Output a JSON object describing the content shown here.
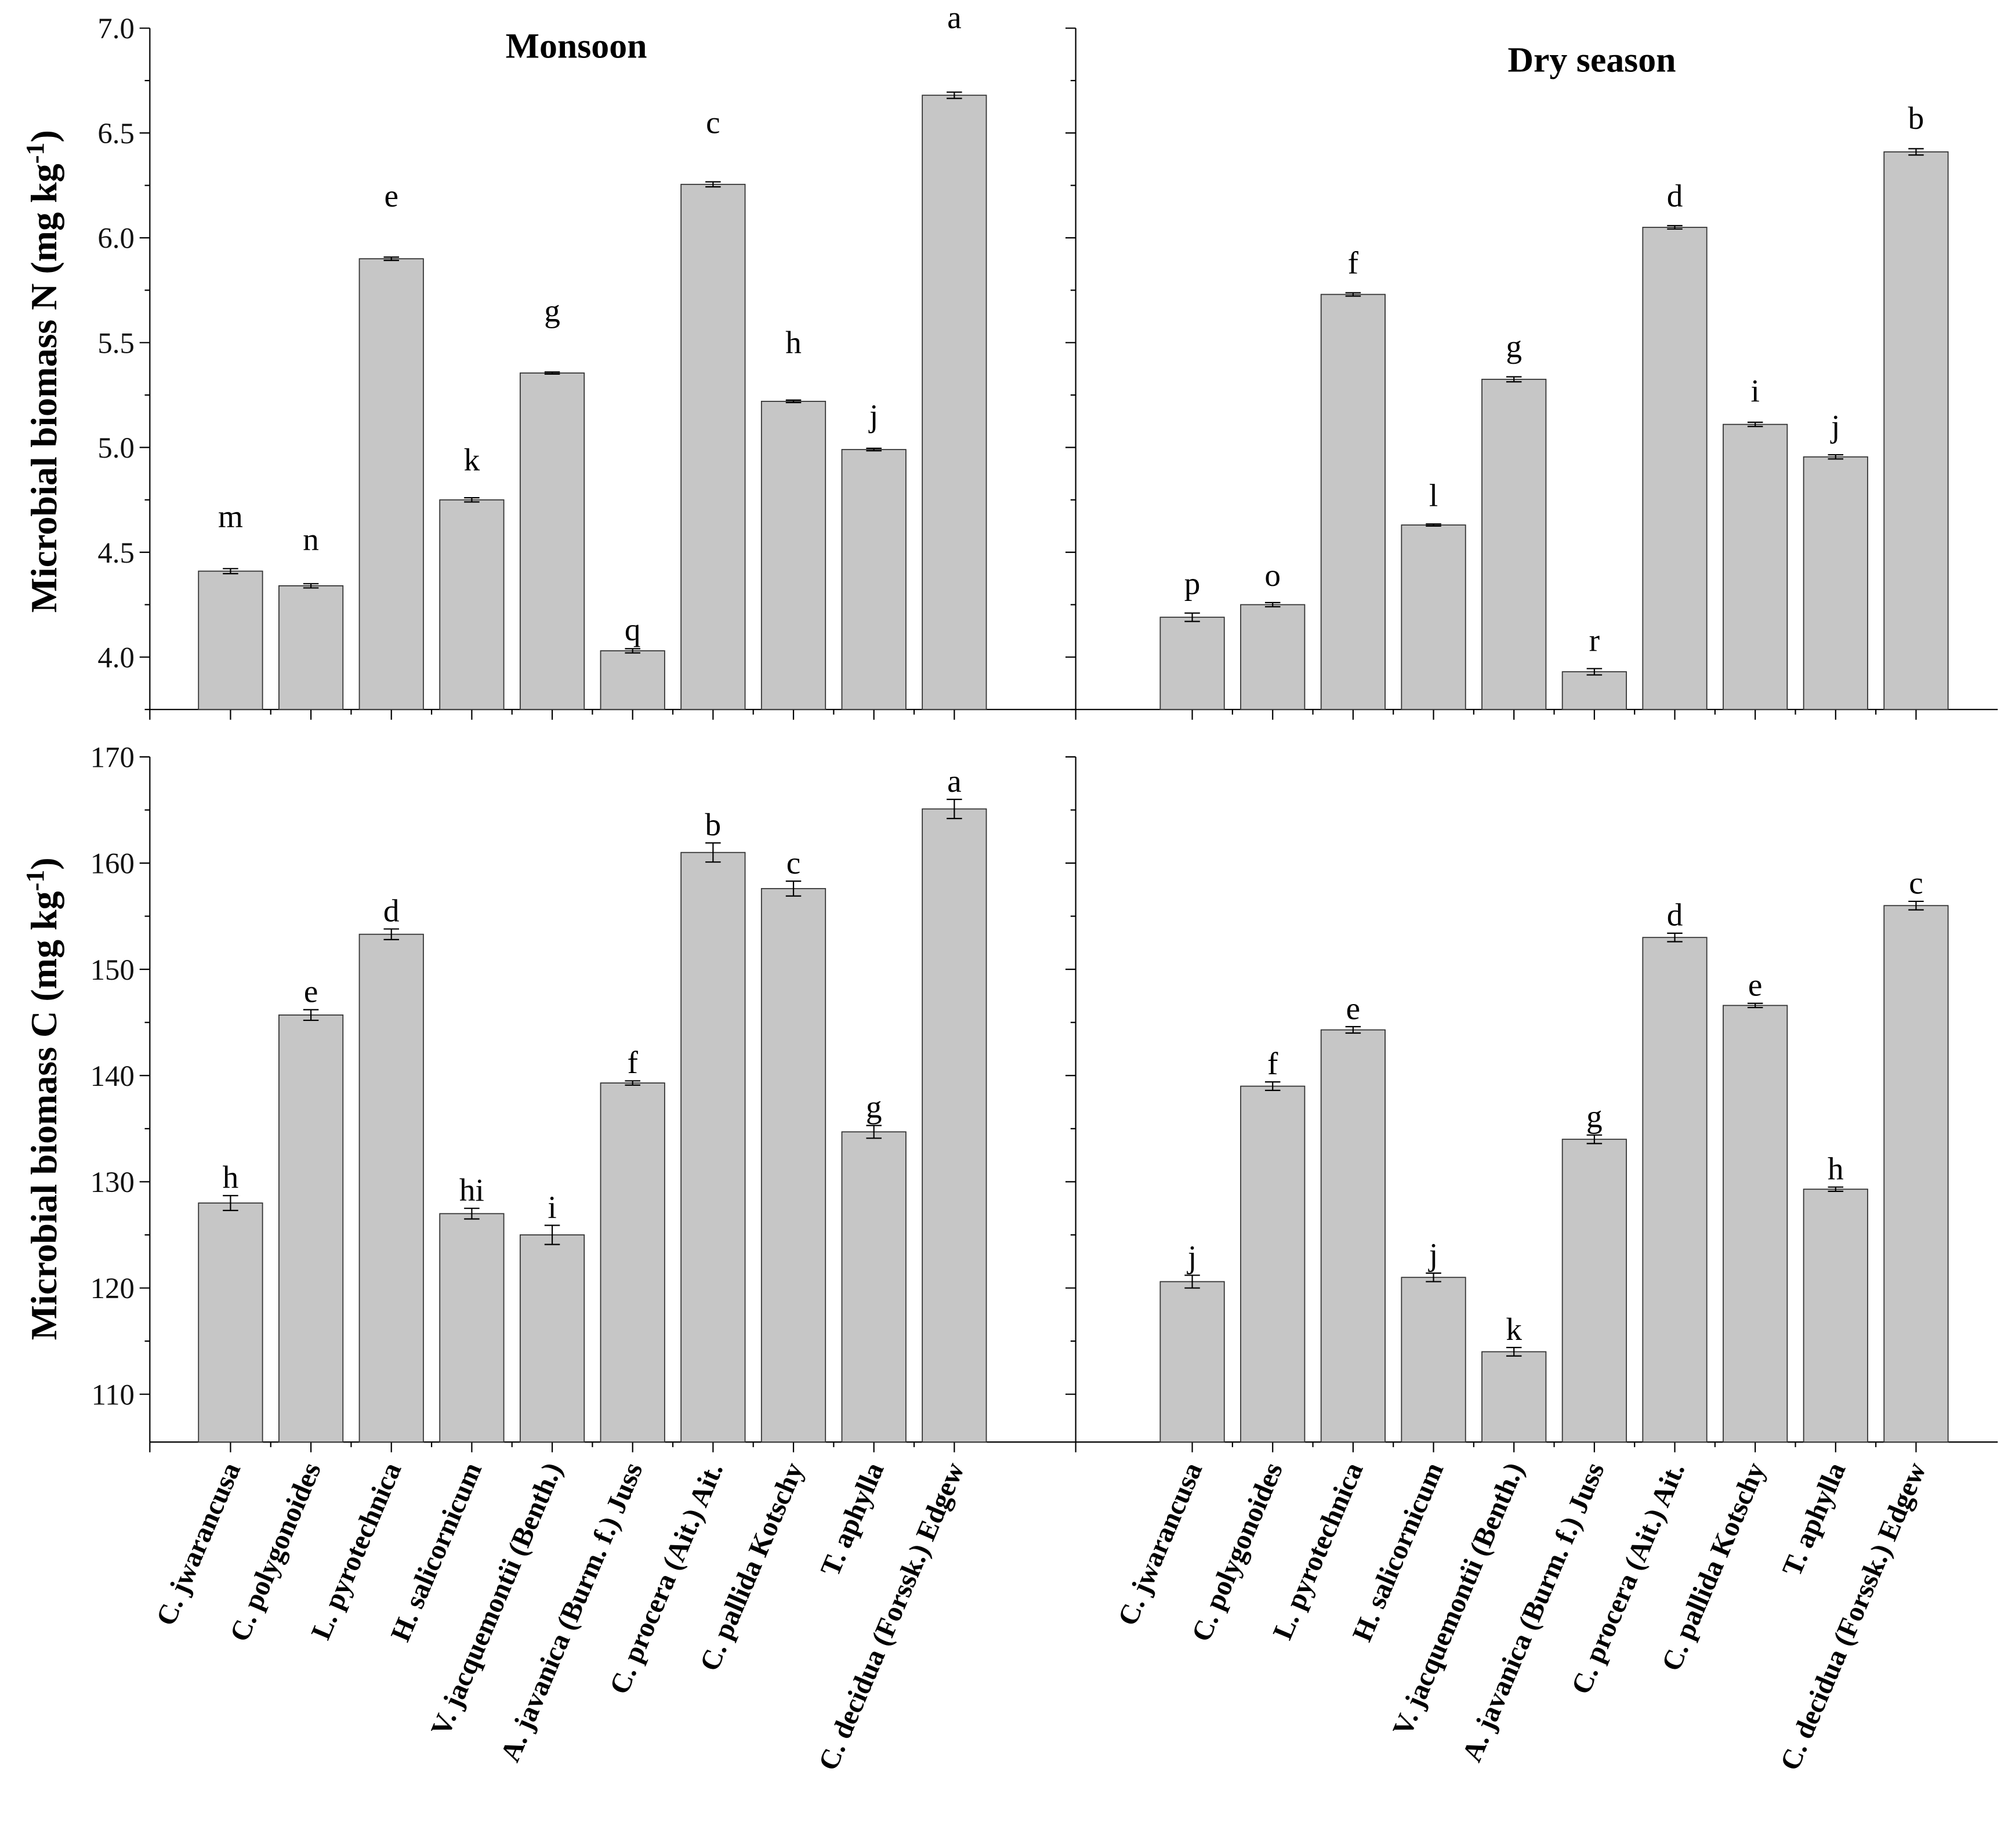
{
  "chart_data": [
    {
      "type": "bar",
      "panel": "top-left",
      "title": "Monsoon",
      "ylabel": "Microbial biomass N (mg kg-1)",
      "ylim": [
        3.75,
        7.0
      ],
      "yticks": [
        "4.0",
        "4.5",
        "5.0",
        "5.5",
        "6.0",
        "6.5",
        "7.0"
      ],
      "categories": [
        "C. jwarancusa",
        "C. polygonoides",
        "L. pyrotechnica",
        "H. salicornicum",
        "V. jacquemontii (Benth.)",
        "A. javanica (Burm. f.) Juss",
        "C. procera (Ait.) Ait.",
        "C. pallida Kotschy",
        "T. aphylla",
        "C. decidua (Forssk.) Edgew"
      ],
      "values": [
        4.41,
        4.34,
        5.9,
        4.75,
        5.355,
        4.03,
        6.255,
        5.22,
        4.99,
        6.68
      ],
      "errors": [
        0.012,
        0.01,
        0.008,
        0.01,
        0.005,
        0.01,
        0.012,
        0.006,
        0.006,
        0.015
      ],
      "letters": [
        "m",
        "n",
        "e",
        "k",
        "g",
        "q",
        "c",
        "h",
        "j",
        "a"
      ],
      "letter_above": [
        4.62,
        4.51,
        6.15,
        4.89,
        5.6,
        4.08,
        6.5,
        5.45,
        5.1,
        7.0
      ]
    },
    {
      "type": "bar",
      "panel": "top-right",
      "title": "Dry season",
      "ylim": [
        3.75,
        7.0
      ],
      "categories": [
        "C. jwarancusa",
        "C. polygonoides",
        "L. pyrotechnica",
        "H. salicornicum",
        "V. jacquemontii (Benth.)",
        "A. javanica (Burm. f.) Juss",
        "C. procera (Ait.) Ait.",
        "C. pallida Kotschy",
        "T. aphylla",
        "C. decidua (Forssk.) Edgew"
      ],
      "values": [
        4.19,
        4.25,
        5.73,
        4.63,
        5.325,
        3.93,
        6.05,
        5.11,
        4.955,
        6.41
      ],
      "errors": [
        0.02,
        0.01,
        0.008,
        0.005,
        0.012,
        0.015,
        0.008,
        0.01,
        0.01,
        0.015
      ],
      "letters": [
        "p",
        "o",
        "f",
        "l",
        "g",
        "r",
        "d",
        "i",
        "j",
        "b"
      ],
      "letter_above": [
        4.3,
        4.34,
        5.83,
        4.72,
        5.43,
        4.03,
        6.15,
        5.22,
        5.05,
        6.52
      ]
    },
    {
      "type": "bar",
      "panel": "bottom-left",
      "ylabel": "Microbial biomass C (mg kg-1)",
      "ylim": [
        105.5,
        170
      ],
      "yticks": [
        "110",
        "120",
        "130",
        "140",
        "150",
        "160",
        "170"
      ],
      "categories": [
        "C. jwarancusa",
        "C. polygonoides",
        "L. pyrotechnica",
        "H. salicornicum",
        "V. jacquemontii (Benth.)",
        "A. javanica (Burm. f.) Juss",
        "C. procera (Ait.) Ait.",
        "C. pallida Kotschy",
        "T. aphylla",
        "C. decidua (Forssk.) Edgew"
      ],
      "values": [
        128.0,
        145.7,
        153.3,
        127.0,
        125.0,
        139.3,
        161.0,
        157.6,
        134.7,
        165.1
      ],
      "errors": [
        0.7,
        0.5,
        0.5,
        0.5,
        0.9,
        0.2,
        0.9,
        0.7,
        0.6,
        0.9
      ],
      "letters": [
        "h",
        "e",
        "d",
        "hi",
        "i",
        "f",
        "b",
        "c",
        "g",
        "a"
      ]
    },
    {
      "type": "bar",
      "panel": "bottom-right",
      "ylim": [
        105.5,
        170
      ],
      "categories": [
        "C. jwarancusa",
        "C. polygonoides",
        "L. pyrotechnica",
        "H. salicornicum",
        "V. jacquemontii (Benth.)",
        "A. javanica (Burm. f.) Juss",
        "C. procera (Ait.) Ait.",
        "C. pallida Kotschy",
        "T. aphylla",
        "C. decidua (Forssk.) Edgew"
      ],
      "values": [
        120.6,
        139.0,
        144.3,
        121.0,
        114.0,
        134.0,
        153.0,
        146.6,
        129.3,
        156.0
      ],
      "errors": [
        0.6,
        0.4,
        0.3,
        0.4,
        0.4,
        0.4,
        0.4,
        0.2,
        0.2,
        0.4
      ],
      "letters": [
        "j",
        "f",
        "e",
        "j",
        "k",
        "g",
        "d",
        "e",
        "h",
        "c"
      ]
    }
  ],
  "colors": {
    "bar": "#c6c6c6",
    "bar_stroke": "#333333",
    "axis": "#000000"
  }
}
